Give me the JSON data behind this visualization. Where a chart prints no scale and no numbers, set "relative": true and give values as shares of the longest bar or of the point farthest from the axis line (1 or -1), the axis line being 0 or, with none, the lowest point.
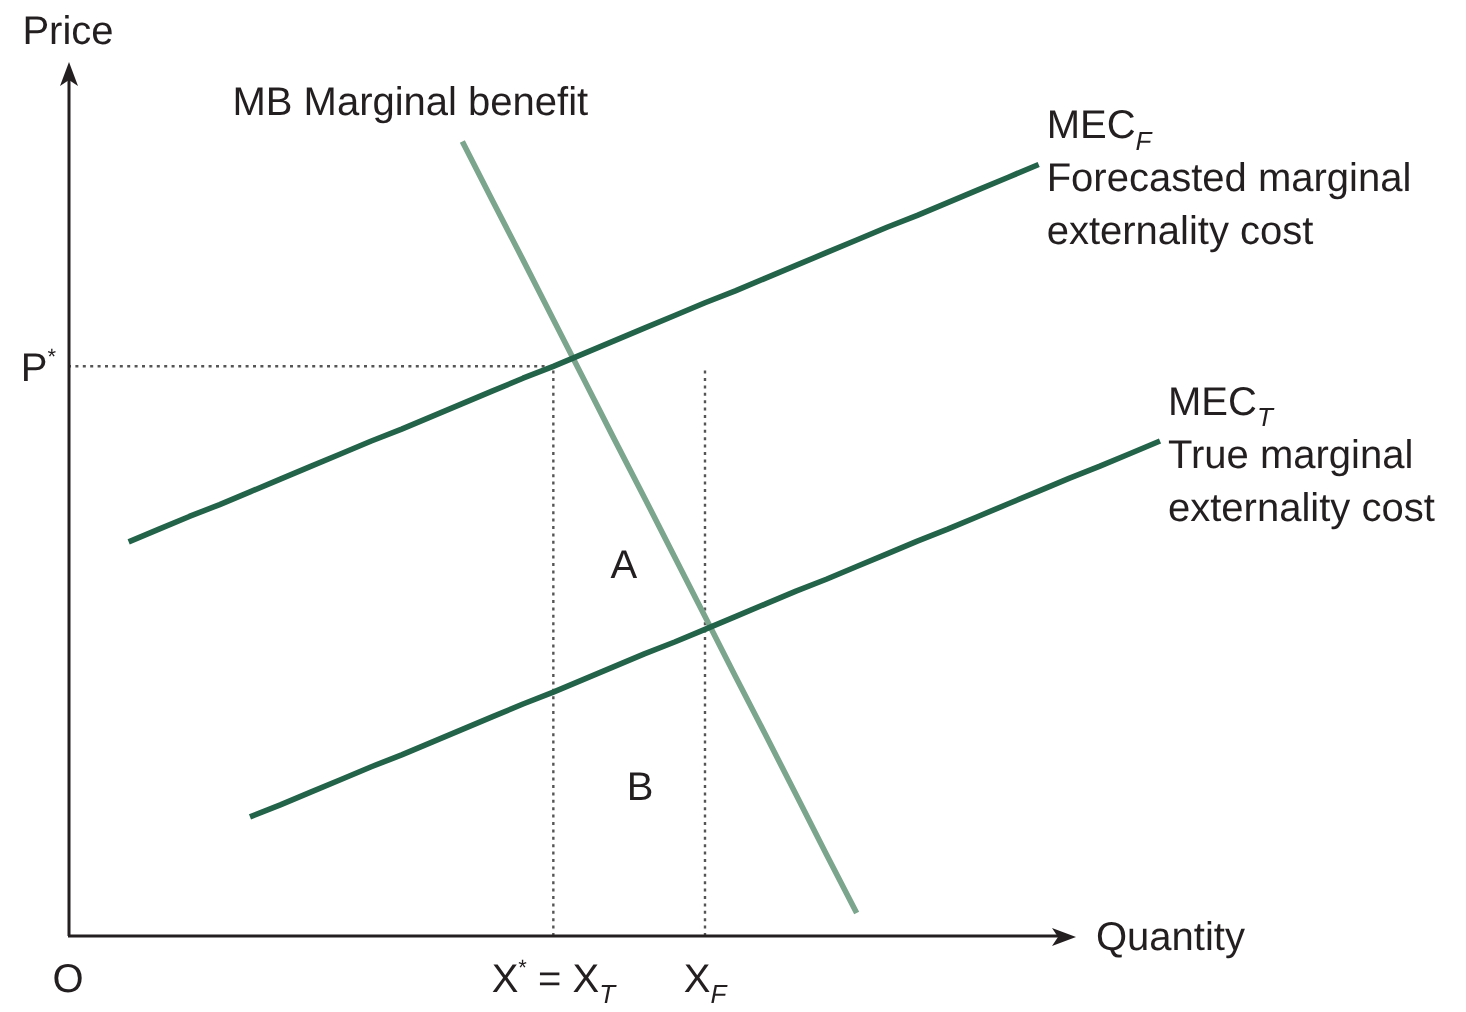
{
  "chart_data": {
    "type": "line",
    "relative": true,
    "xlabel": "Quantity",
    "ylabel": "Price",
    "legend": false,
    "categories": [
      "O",
      null,
      null,
      null,
      null,
      null,
      null,
      null,
      null,
      null,
      null,
      null,
      null,
      null,
      null,
      null,
      "X$^{*}$ = X$_{T}$",
      null,
      null,
      null,
      null,
      "X$_{F}$",
      null,
      null,
      null,
      null,
      null,
      null,
      null,
      null,
      null,
      null,
      null,
      null,
      null,
      null,
      null
    ],
    "series": [
      {
        "name": "MEC$_{F}$\nForecasted marginal\nexternality cost",
        "color": "#22634a",
        "values": [
          null,
          null,
          0.496,
          0.512,
          0.528,
          0.543,
          0.559,
          0.575,
          0.591,
          0.607,
          0.623,
          0.638,
          0.654,
          0.67,
          0.686,
          0.702,
          0.717,
          0.733,
          0.749,
          0.765,
          0.781,
          0.797,
          0.812,
          0.828,
          0.844,
          0.86,
          0.876,
          0.892,
          0.907,
          0.923,
          0.939,
          0.955,
          0.971,
          null,
          null,
          null,
          null
        ]
      },
      {
        "name": "MEC$_{T}$\nTrue marginal\nexternality cost",
        "color": "#22634a",
        "values": [
          null,
          null,
          null,
          null,
          null,
          null,
          0.15,
          0.165,
          0.181,
          0.197,
          0.213,
          0.228,
          0.244,
          0.26,
          0.276,
          0.292,
          0.307,
          0.323,
          0.339,
          0.355,
          0.37,
          0.386,
          0.402,
          0.418,
          0.434,
          0.449,
          0.465,
          0.481,
          0.497,
          0.512,
          0.528,
          0.544,
          0.56,
          0.576,
          0.591,
          0.607,
          0.623
        ]
      },
      {
        "name": "MB Marginal benefit",
        "color": "#7ba58c",
        "values": [
          null,
          null,
          null,
          null,
          null,
          null,
          null,
          null,
          null,
          null,
          null,
          null,
          null,
          1,
          0.925,
          0.851,
          0.776,
          0.701,
          0.626,
          0.552,
          0.477,
          0.402,
          0.327,
          0.253,
          0.178,
          0.103,
          0.029,
          null,
          null,
          null,
          null,
          null,
          null,
          null,
          null,
          null,
          null
        ]
      }
    ],
    "ref_lines": [
      {
        "axis": "y",
        "value": 0.717,
        "label": "P$^{*}$",
        "color": "#555555",
        "line_style": "dotted"
      },
      {
        "axis": "x",
        "value": "X$^{*}$ = X$_{T}$",
        "color": "#555555",
        "line_style": "dotted"
      },
      {
        "axis": "x",
        "value": "X$_{F}$",
        "color": "#555555",
        "line_style": "dotted"
      }
    ],
    "annotations": [
      "A",
      "B"
    ]
  }
}
